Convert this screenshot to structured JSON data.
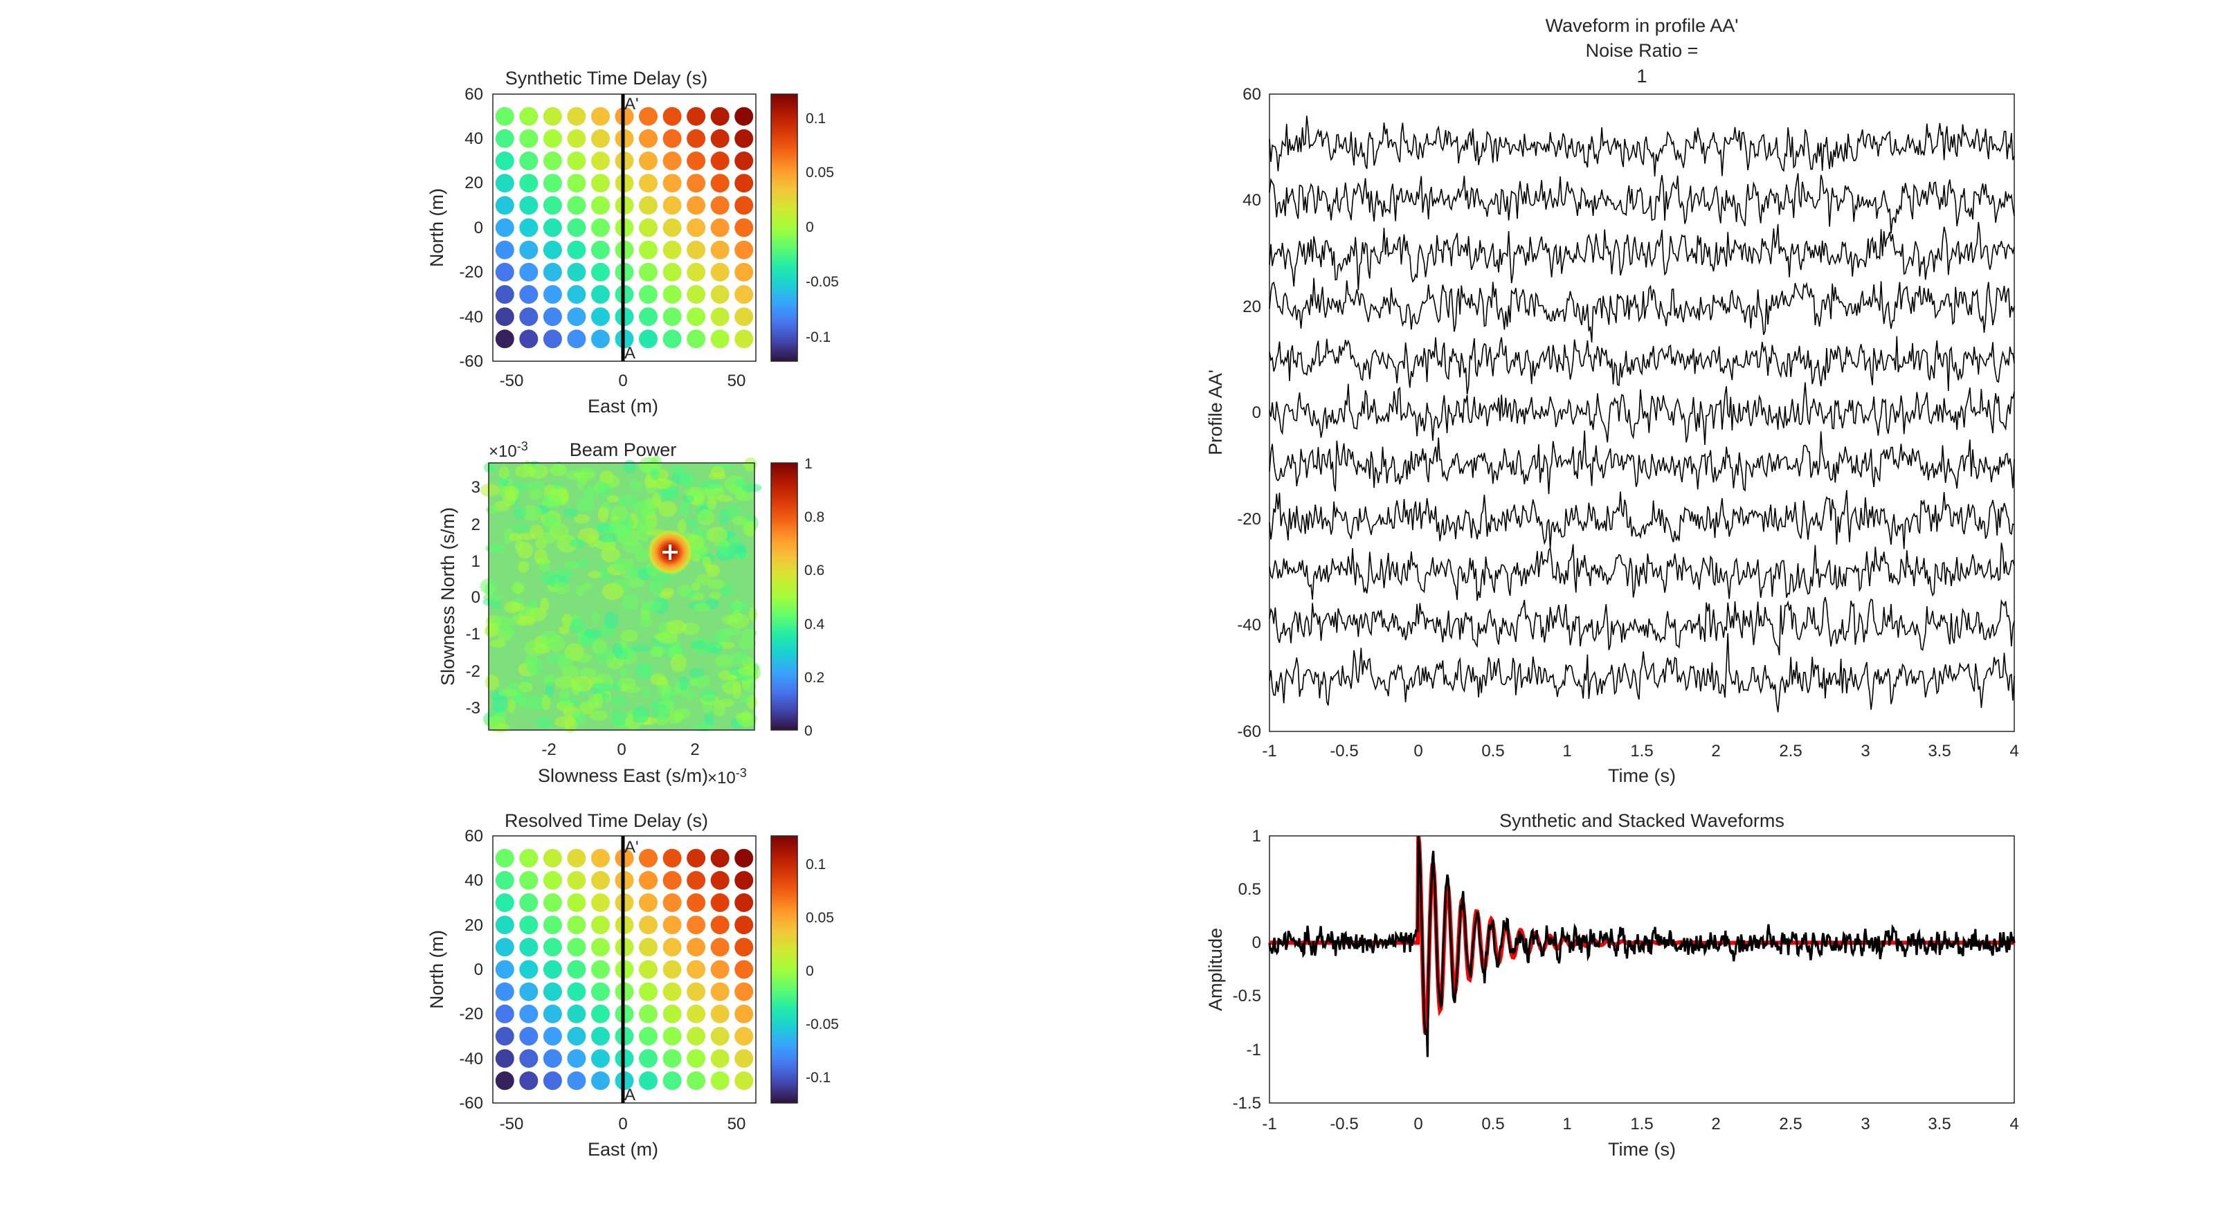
{
  "colors": {
    "turbo": [
      "#30123b",
      "#4145ab",
      "#4675ed",
      "#39a2fc",
      "#1bcfd4",
      "#24eca6",
      "#61fc6c",
      "#a4fc3b",
      "#d1e834",
      "#f3c63a",
      "#fe9b2d",
      "#f36315",
      "#d93806",
      "#b11901",
      "#7a0403"
    ],
    "synthetic_line": "#ff0000",
    "stacked_line": "#000000",
    "trace_line": "#000000"
  },
  "panels": {
    "synthetic_delay": {
      "title": "Synthetic Time Delay (s)",
      "xlabel": "East (m)",
      "ylabel": "North (m)",
      "xticks": [
        "-50",
        "0",
        "50"
      ],
      "yticks": [
        "60",
        "40",
        "20",
        "0",
        "-20",
        "-40",
        "-60"
      ],
      "xlim": [
        -55,
        55
      ],
      "ylim": [
        -60,
        60
      ],
      "profile_label_top": "A'",
      "profile_label_bottom": "A",
      "colorbar_ticks": [
        "0.1",
        "0.05",
        "0",
        "-0.05",
        "-0.1"
      ],
      "clim": [
        -0.12,
        0.12
      ],
      "grid_x": [
        -50,
        -40,
        -30,
        -20,
        -10,
        0,
        10,
        20,
        30,
        40,
        50
      ],
      "grid_y": [
        50,
        40,
        30,
        20,
        10,
        0,
        -10,
        -20,
        -30,
        -40,
        -50
      ],
      "delay_per_m_east": 0.0013,
      "delay_per_m_north": 0.001
    },
    "beam_power": {
      "title": "Beam Power",
      "xlabel": "Slowness East (s/m)",
      "ylabel": "Slowness North (s/m)",
      "xticks": [
        "-2",
        "0",
        "2"
      ],
      "yticks": [
        "3",
        "2",
        "1",
        "0",
        "-1",
        "-2",
        "-3"
      ],
      "exponent_base": "×10",
      "exponent_power": "-3",
      "xlim": [
        -3.6,
        3.6
      ],
      "ylim": [
        -3.6,
        3.6
      ],
      "peak": {
        "sx": 1.3,
        "sy": 1.0
      },
      "background_power": 0.45,
      "colorbar_ticks": [
        "1",
        "0.8",
        "0.6",
        "0.4",
        "0.2",
        "0"
      ],
      "clim": [
        0,
        1
      ]
    },
    "resolved_delay": {
      "title": "Resolved Time Delay (s)",
      "xlabel": "East (m)",
      "ylabel": "North (m)",
      "xticks": [
        "-50",
        "0",
        "50"
      ],
      "yticks": [
        "60",
        "40",
        "20",
        "0",
        "-20",
        "-40",
        "-60"
      ],
      "profile_label_top": "A'",
      "profile_label_bottom": "A",
      "colorbar_ticks": [
        "0.1",
        "0.05",
        "0",
        "-0.05",
        "-0.1"
      ]
    },
    "waveform_profile": {
      "title_line1": "Waveform in profile AA'",
      "title_line2": "Noise Ratio =",
      "title_line3": "1",
      "xlabel": "Time (s)",
      "ylabel": "Profile AA'",
      "xticks": [
        "-1",
        "-0.5",
        "0",
        "0.5",
        "1",
        "1.5",
        "2",
        "2.5",
        "3",
        "3.5",
        "4"
      ],
      "yticks": [
        "60",
        "40",
        "20",
        "0",
        "-20",
        "-40",
        "-60"
      ],
      "xlim": [
        -1,
        4
      ],
      "ylim": [
        -60,
        60
      ],
      "trace_offsets": [
        50,
        40,
        30,
        20,
        10,
        0,
        -10,
        -20,
        -30,
        -40,
        -50
      ]
    },
    "stacked_waveforms": {
      "title": "Synthetic and Stacked Waveforms",
      "xlabel": "Time (s)",
      "ylabel": "Amplitude",
      "xticks": [
        "-1",
        "-0.5",
        "0",
        "0.5",
        "1",
        "1.5",
        "2",
        "2.5",
        "3",
        "3.5",
        "4"
      ],
      "yticks": [
        "1",
        "0.5",
        "0",
        "-0.5",
        "-1",
        "-1.5"
      ],
      "xlim": [
        -1,
        4
      ],
      "ylim": [
        -1.5,
        1
      ]
    }
  },
  "chart_data": [
    {
      "type": "scatter",
      "title": "Synthetic Time Delay (s)",
      "xlabel": "East (m)",
      "ylabel": "North (m)",
      "x_grid": [
        -50,
        -40,
        -30,
        -20,
        -10,
        0,
        10,
        20,
        30,
        40,
        50
      ],
      "y_grid": [
        -50,
        -40,
        -30,
        -20,
        -10,
        0,
        10,
        20,
        30,
        40,
        50
      ],
      "color_value": "time delay (s), increasing toward east and north",
      "delay_range": [
        -0.115,
        0.115
      ],
      "xlim": [
        -55,
        55
      ],
      "ylim": [
        -60,
        60
      ]
    },
    {
      "type": "heatmap",
      "title": "Beam Power",
      "xlabel": "Slowness East (s/m)",
      "ylabel": "Slowness North (s/m)",
      "peak_slowness": [
        0.0013,
        0.001
      ],
      "xlim": [
        -0.0036,
        0.0036
      ],
      "ylim": [
        -0.0036,
        0.0036
      ],
      "clim": [
        0,
        1
      ]
    },
    {
      "type": "scatter",
      "title": "Resolved Time Delay (s)",
      "xlabel": "East (m)",
      "ylabel": "North (m)",
      "x_grid": [
        -50,
        -40,
        -30,
        -20,
        -10,
        0,
        10,
        20,
        30,
        40,
        50
      ],
      "y_grid": [
        -50,
        -40,
        -30,
        -20,
        -10,
        0,
        10,
        20,
        30,
        40,
        50
      ],
      "delay_range": [
        -0.115,
        0.115
      ]
    },
    {
      "type": "line",
      "title": "Waveform in profile AA' Noise Ratio = 1",
      "xlabel": "Time (s)",
      "ylabel": "Profile AA'",
      "x_range": [
        -1,
        4
      ],
      "trace_offsets": [
        50,
        40,
        30,
        20,
        10,
        0,
        -10,
        -20,
        -30,
        -40,
        -50
      ],
      "trace_amplitude": 4,
      "ylim": [
        -60,
        60
      ]
    },
    {
      "type": "line",
      "title": "Synthetic and Stacked Waveforms",
      "xlabel": "Time (s)",
      "ylabel": "Amplitude",
      "x_range": [
        -1,
        4
      ],
      "ylim": [
        -1.5,
        1
      ],
      "series": [
        {
          "description": "synthetic (red): decaying oscillation starting at t=0, peak 1, frequency ~10 Hz"
        },
        {
          "description": "stacked (black): synthetic plus noise, min about -1.07 near t=0.06"
        }
      ]
    }
  ]
}
